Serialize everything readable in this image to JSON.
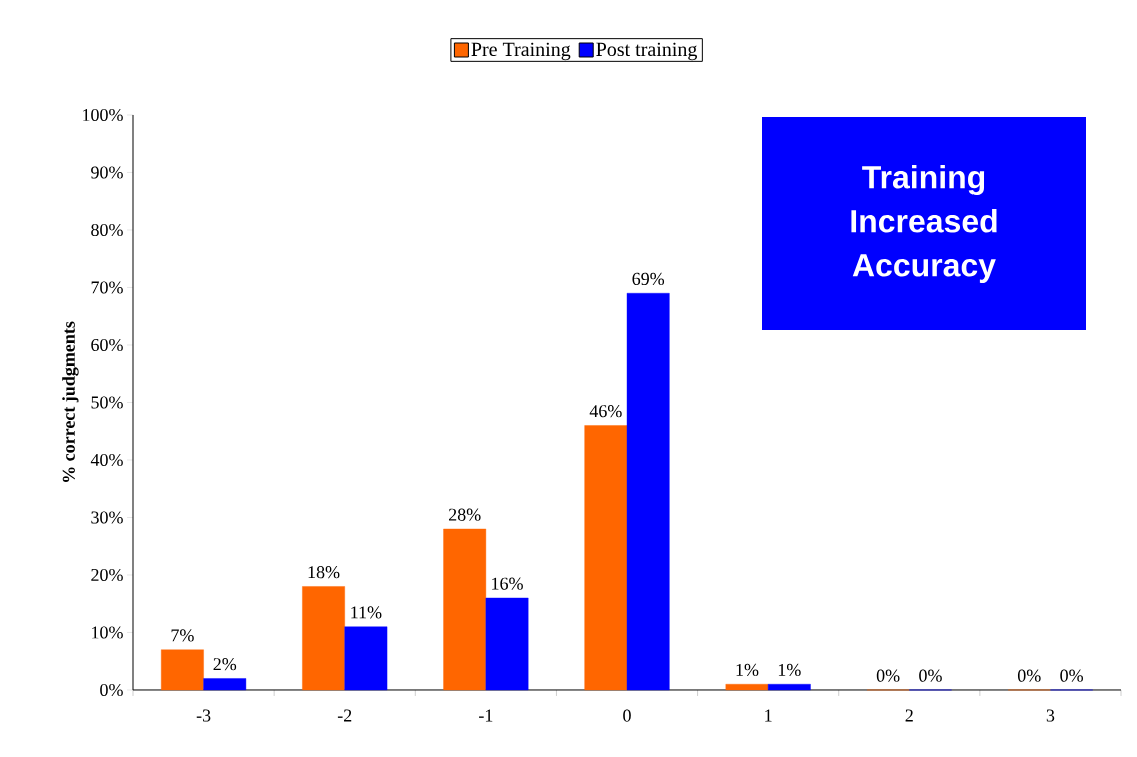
{
  "chart_data": {
    "type": "bar",
    "ylabel": "% correct judgments",
    "categories": [
      "-3",
      "-2",
      "-1",
      "0",
      "1",
      "2",
      "3"
    ],
    "series": [
      {
        "name": "Pre Training",
        "color": "#ff6600",
        "values": [
          7,
          18,
          28,
          46,
          1,
          0,
          0
        ],
        "value_labels": [
          "7%",
          "18%",
          "28%",
          "46%",
          "1%",
          "0%",
          "0%"
        ]
      },
      {
        "name": "Post training",
        "color": "#0000ff",
        "values": [
          2,
          11,
          16,
          69,
          1,
          0,
          0
        ],
        "value_labels": [
          "2%",
          "11%",
          "16%",
          "69%",
          "1%",
          "0%",
          "0%"
        ]
      }
    ],
    "ylim": [
      0,
      100
    ],
    "yticks": [
      {
        "value": 0,
        "label": "0%"
      },
      {
        "value": 10,
        "label": "10%"
      },
      {
        "value": 20,
        "label": "20%"
      },
      {
        "value": 30,
        "label": "30%"
      },
      {
        "value": 40,
        "label": "40%"
      },
      {
        "value": 50,
        "label": "50%"
      },
      {
        "value": 60,
        "label": "60%"
      },
      {
        "value": 70,
        "label": "70%"
      },
      {
        "value": 80,
        "label": "80%"
      },
      {
        "value": 90,
        "label": "90%"
      },
      {
        "value": 100,
        "label": "100%"
      }
    ],
    "legend": "top",
    "annotations": [
      "Training Increased Accuracy"
    ]
  }
}
